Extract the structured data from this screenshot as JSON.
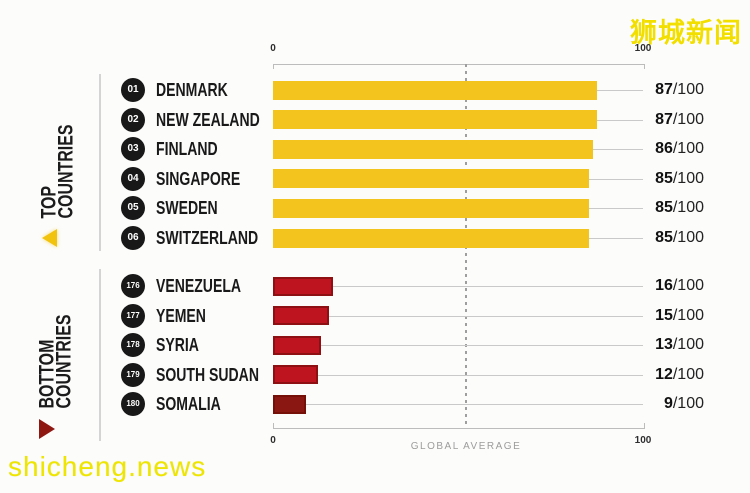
{
  "watermarks": {
    "site_name": "狮城新闻",
    "site_url": "shicheng.news"
  },
  "sections": {
    "top": {
      "label_line1": "TOP",
      "label_line2": "COUNTRIES"
    },
    "bottom": {
      "label_line1": "BOTTOM",
      "label_line2": "COUNTRIES"
    }
  },
  "chart_data": {
    "type": "bar",
    "orientation": "horizontal",
    "x_range": [
      0,
      100
    ],
    "x_tick_labels": [
      "0",
      "100"
    ],
    "grid": "off",
    "global_average": {
      "label": "GLOBAL AVERAGE",
      "position_pct": 52
    },
    "score_denominator": "/100",
    "groups": [
      {
        "name": "TOP COUNTRIES",
        "bar_color": "#F4C41E",
        "rows": [
          {
            "rank": "01",
            "country": "DENMARK",
            "value": 87
          },
          {
            "rank": "02",
            "country": "NEW ZEALAND",
            "value": 87
          },
          {
            "rank": "03",
            "country": "FINLAND",
            "value": 86
          },
          {
            "rank": "04",
            "country": "SINGAPORE",
            "value": 85
          },
          {
            "rank": "05",
            "country": "SWEDEN",
            "value": 85
          },
          {
            "rank": "06",
            "country": "SWITZERLAND",
            "value": 85
          }
        ]
      },
      {
        "name": "BOTTOM COUNTRIES",
        "bar_color": "#BE1420",
        "bar_border": "#8F1013",
        "rows": [
          {
            "rank": "176",
            "country": "VENEZUELA",
            "value": 16
          },
          {
            "rank": "177",
            "country": "YEMEN",
            "value": 15
          },
          {
            "rank": "178",
            "country": "SYRIA",
            "value": 13
          },
          {
            "rank": "179",
            "country": "SOUTH SUDAN",
            "value": 12
          },
          {
            "rank": "180",
            "country": "SOMALIA",
            "value": 9,
            "bar_color": "#8A1711",
            "bar_border": "#741008"
          }
        ]
      }
    ]
  },
  "colors": {
    "top_arrow": "#F2C30E",
    "bottom_arrow": "#8E1712",
    "watermark_yellow": "#F0E300",
    "axis_gray": "#bcbcbc",
    "badge_black": "#181818"
  }
}
